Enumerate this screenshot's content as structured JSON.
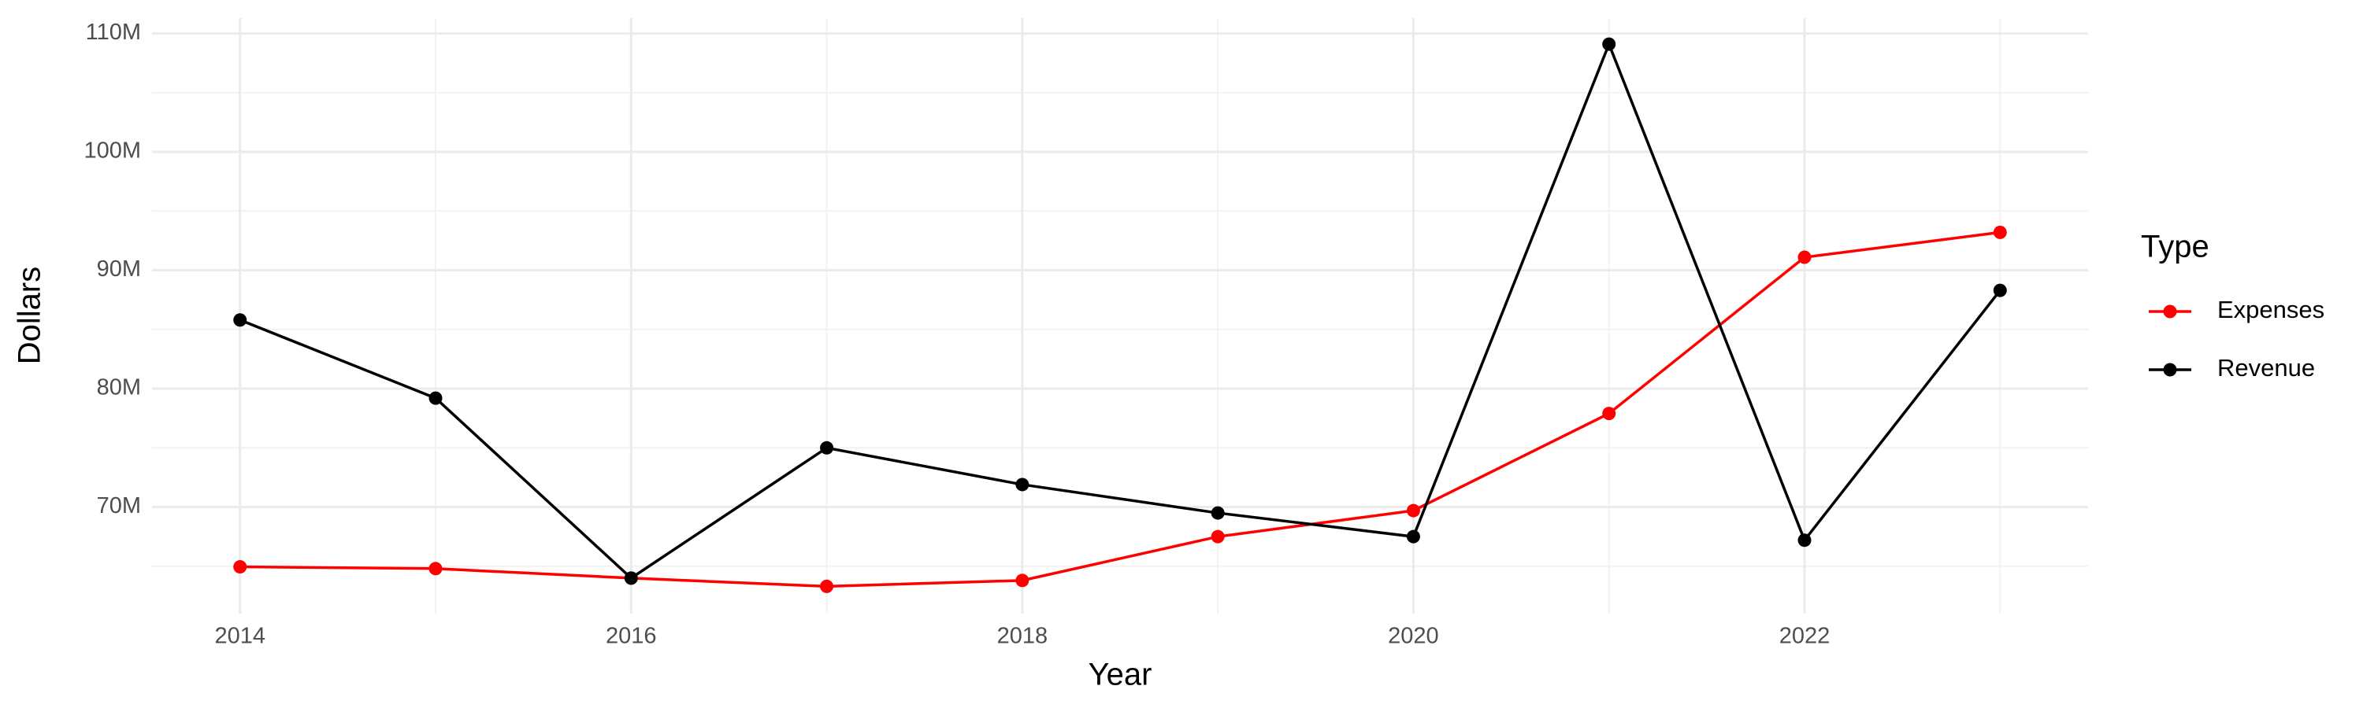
{
  "chart_data": {
    "type": "line",
    "x_label": "Year",
    "y_label": "Dollars",
    "legend_title": "Type",
    "legend_position": "right",
    "x": [
      2014,
      2015,
      2016,
      2017,
      2018,
      2019,
      2020,
      2021,
      2022,
      2023
    ],
    "series": [
      {
        "name": "Expenses",
        "color": "#ff0000",
        "values": [
          64950000,
          64800000,
          64000000,
          63300000,
          63800000,
          67500000,
          69700000,
          77900000,
          91100000,
          93200000
        ]
      },
      {
        "name": "Revenue",
        "color": "#000000",
        "values": [
          85800000,
          79200000,
          64000000,
          75000000,
          71900000,
          69500000,
          67500000,
          109100000,
          67200000,
          88300000
        ]
      }
    ],
    "xlim": [
      2013.55,
      2023.45
    ],
    "xticks": [
      2014,
      2016,
      2018,
      2020,
      2022
    ],
    "ylim": [
      61000000,
      111300000
    ],
    "yticks": [
      {
        "value": 70000000,
        "label": "70M"
      },
      {
        "value": 80000000,
        "label": "80M"
      },
      {
        "value": 90000000,
        "label": "90M"
      },
      {
        "value": 100000000,
        "label": "100M"
      },
      {
        "value": 110000000,
        "label": "110M"
      }
    ],
    "grid": true
  }
}
